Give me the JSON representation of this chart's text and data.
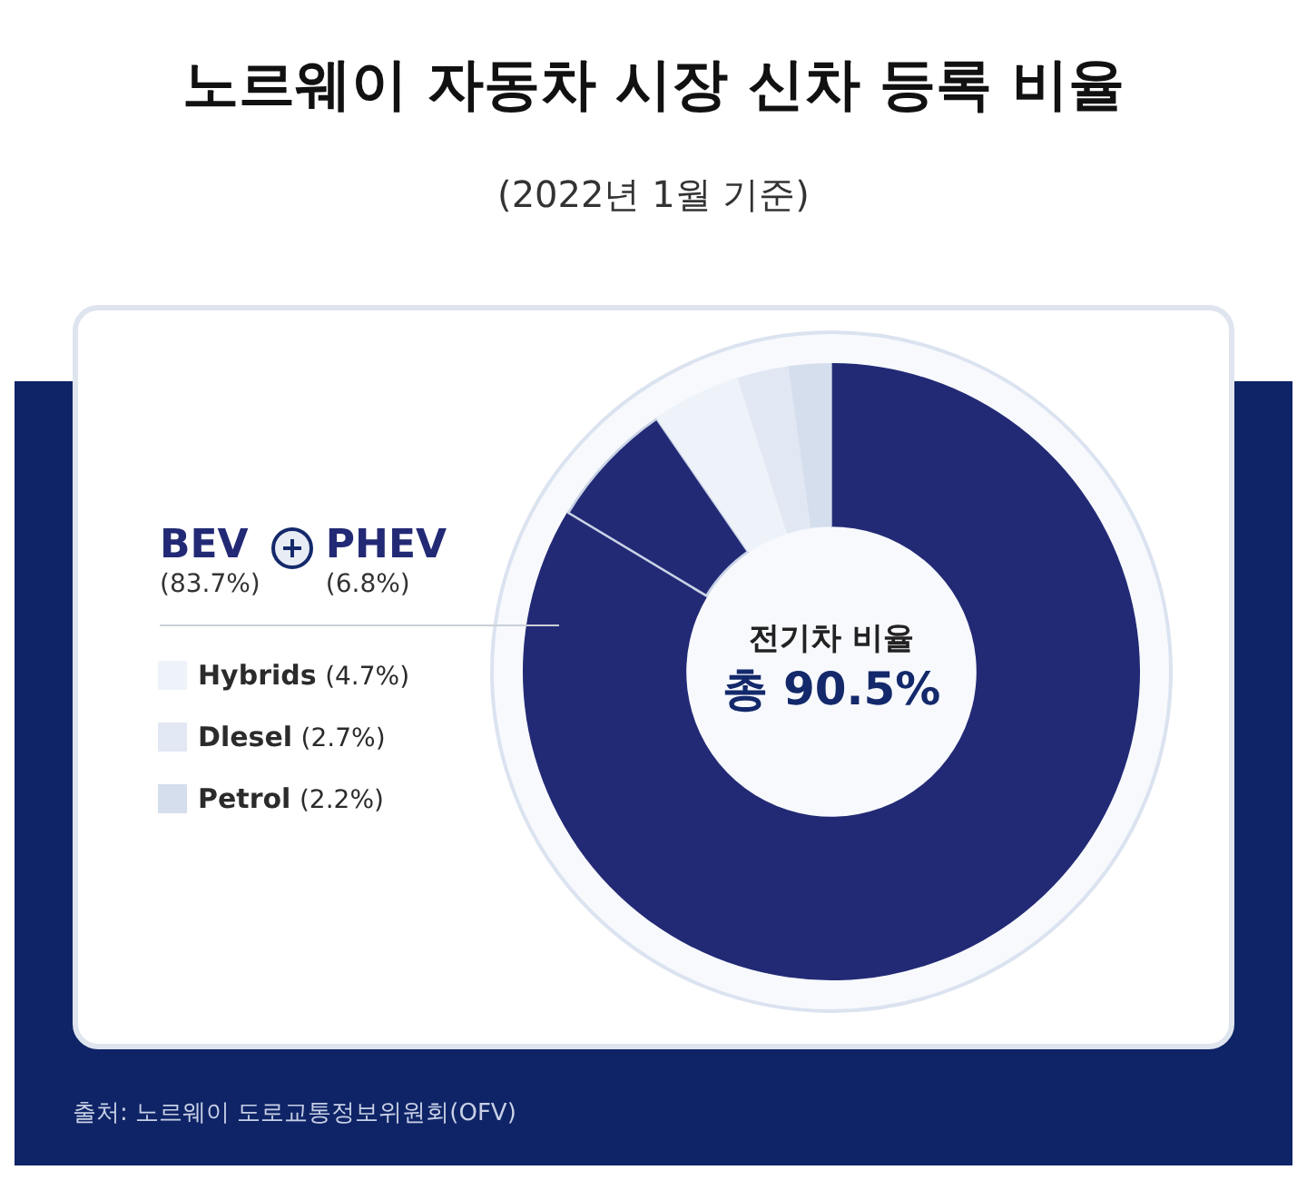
{
  "chart_data": {
    "type": "donut",
    "title": "노르웨이 자동차 시장 신차 등록 비율",
    "subtitle": "(2022년 1월 기준)",
    "categories": [
      "BEV",
      "PHEV",
      "Hybrids",
      "Dlesel",
      "Petrol"
    ],
    "values": [
      83.7,
      6.8,
      4.7,
      2.7,
      2.2
    ],
    "value_labels": [
      "(83.7%)",
      "(6.8%)",
      "(4.7%)",
      "(2.7%)",
      "(2.2%)"
    ],
    "colors": [
      "#232a75",
      "#232a75",
      "#eef2f9",
      "#e2e8f3",
      "#d5deed"
    ],
    "legend": "left",
    "annotations": [
      "전기차 비율",
      "총 90.5%",
      "출처: 노르웨이 도로교통정보위원회(OFV)"
    ]
  }
}
